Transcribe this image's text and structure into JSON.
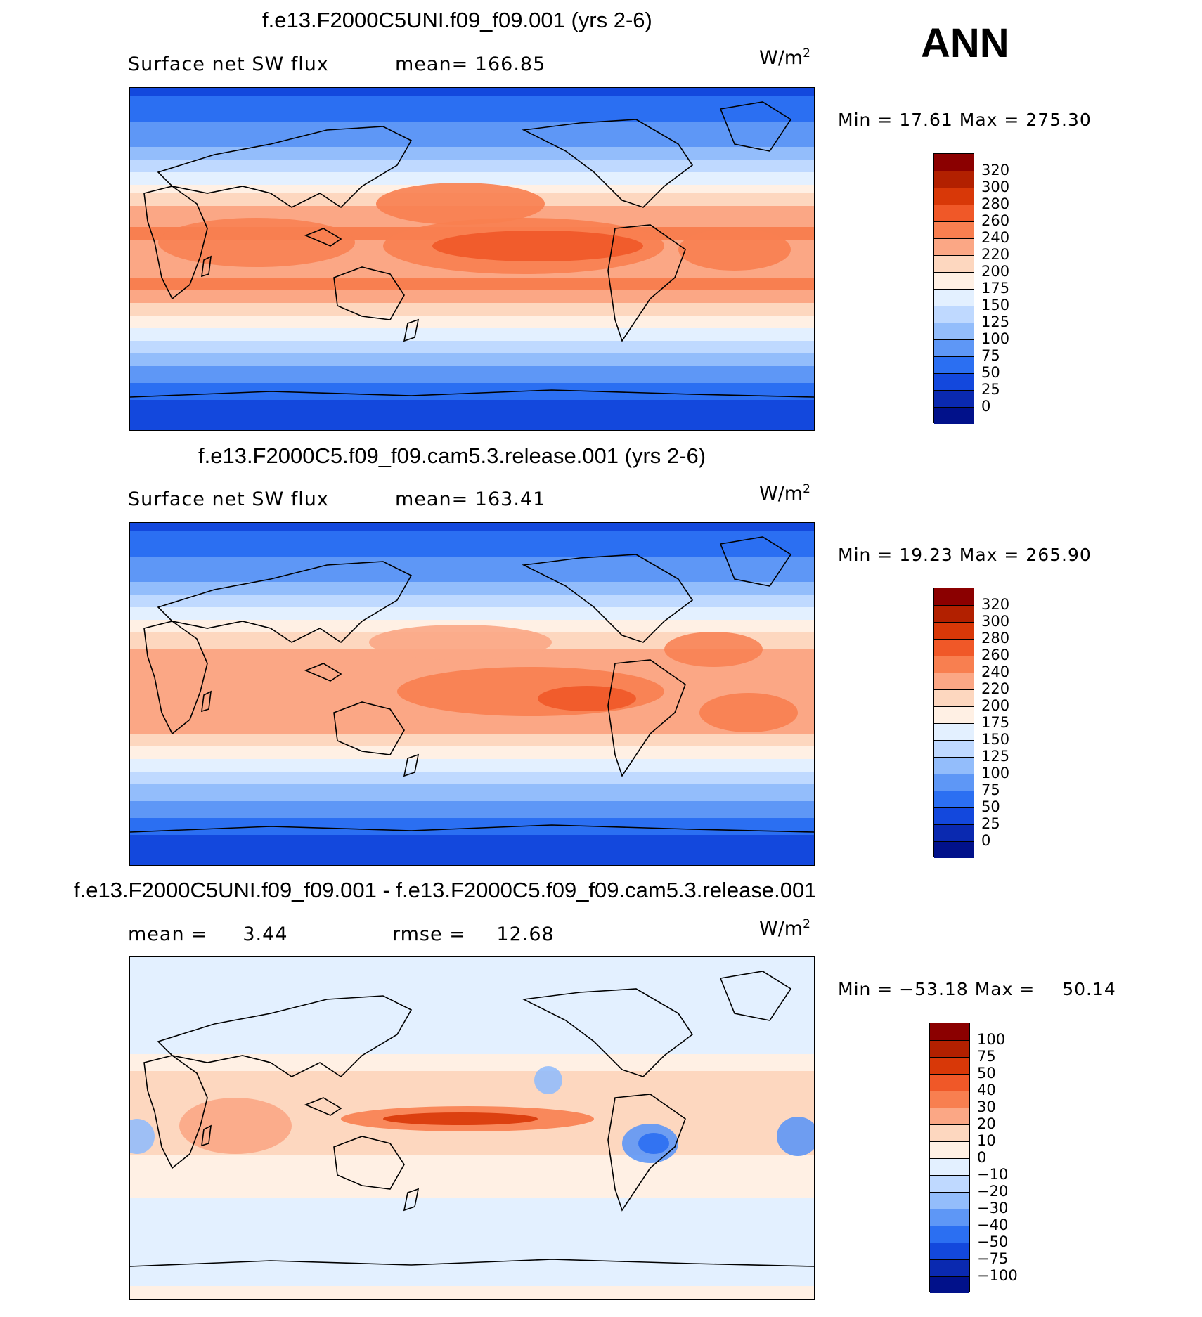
{
  "season": "ANN",
  "units_base": "W/m",
  "units_exp": "2",
  "chart_data": [
    {
      "type": "heatmap",
      "title": "f.e13.F2000C5UNI.f09_f09.001 (yrs 2-6)",
      "variable": "Surface net SW flux",
      "mean_label": "mean=",
      "mean_value": "166.85",
      "min_label": "Min =",
      "min_value": "17.61",
      "max_label": "Max =",
      "max_value": "275.30",
      "colorbar_levels": [
        "320",
        "300",
        "280",
        "260",
        "240",
        "220",
        "200",
        "175",
        "150",
        "125",
        "100",
        "75",
        "50",
        "25",
        "0"
      ],
      "colorbar_colors": [
        "#8b0000",
        "#b22000",
        "#d83808",
        "#f05828",
        "#f87f50",
        "#fba785",
        "#fdd7bf",
        "#fff0e4",
        "#e3f0ff",
        "#bfd9ff",
        "#93bdfb",
        "#5e97f6",
        "#2b6ff2",
        "#1348dd",
        "#0a29b0",
        "#01118a"
      ],
      "approx_zonal_profile": {
        "latitudes_deg": [
          90,
          75,
          60,
          45,
          30,
          15,
          0,
          -15,
          -30,
          -45,
          -60,
          -75,
          -90
        ],
        "values_wm2": [
          40,
          70,
          100,
          150,
          215,
          245,
          230,
          245,
          200,
          140,
          90,
          50,
          25
        ]
      }
    },
    {
      "type": "heatmap",
      "title": "f.e13.F2000C5.f09_f09.cam5.3.release.001 (yrs 2-6)",
      "variable": "Surface net SW flux",
      "mean_label": "mean=",
      "mean_value": "163.41",
      "min_label": "Min =",
      "min_value": "19.23",
      "max_label": "Max =",
      "max_value": "265.90",
      "colorbar_levels": [
        "320",
        "300",
        "280",
        "260",
        "240",
        "220",
        "200",
        "175",
        "150",
        "125",
        "100",
        "75",
        "50",
        "25",
        "0"
      ],
      "colorbar_colors": [
        "#8b0000",
        "#b22000",
        "#d83808",
        "#f05828",
        "#f87f50",
        "#fba785",
        "#fdd7bf",
        "#fff0e4",
        "#e3f0ff",
        "#bfd9ff",
        "#93bdfb",
        "#5e97f6",
        "#2b6ff2",
        "#1348dd",
        "#0a29b0",
        "#01118a"
      ],
      "approx_zonal_profile": {
        "latitudes_deg": [
          90,
          75,
          60,
          45,
          30,
          15,
          0,
          -15,
          -30,
          -45,
          -60,
          -75,
          -90
        ],
        "values_wm2": [
          40,
          70,
          100,
          150,
          205,
          235,
          220,
          235,
          195,
          135,
          85,
          50,
          25
        ]
      }
    },
    {
      "type": "heatmap",
      "title": "f.e13.F2000C5UNI.f09_f09.001 - f.e13.F2000C5.f09_f09.cam5.3.release.001",
      "mean_label": "mean =",
      "mean_value": "3.44",
      "rmse_label": "rmse =",
      "rmse_value": "12.68",
      "min_label": "Min =",
      "min_value": "−53.18",
      "max_label": "Max =",
      "max_value": "50.14",
      "colorbar_levels": [
        "100",
        "75",
        "50",
        "40",
        "30",
        "20",
        "10",
        "0",
        "−10",
        "−20",
        "−30",
        "−40",
        "−50",
        "−75",
        "−100"
      ],
      "colorbar_colors": [
        "#8b0000",
        "#b22000",
        "#d83808",
        "#f05828",
        "#f87f50",
        "#fba785",
        "#fdd7bf",
        "#fff0e4",
        "#e3f0ff",
        "#bfd9ff",
        "#93bdfb",
        "#5e97f6",
        "#2b6ff2",
        "#1348dd",
        "#0a29b0",
        "#01118a"
      ],
      "approx_zonal_profile": {
        "latitudes_deg": [
          90,
          75,
          60,
          45,
          30,
          15,
          0,
          -15,
          -30,
          -45,
          -60,
          -75,
          -90
        ],
        "values_wm2": [
          -5,
          -5,
          -5,
          -5,
          10,
          10,
          15,
          10,
          5,
          -5,
          -10,
          -5,
          5
        ]
      }
    }
  ]
}
